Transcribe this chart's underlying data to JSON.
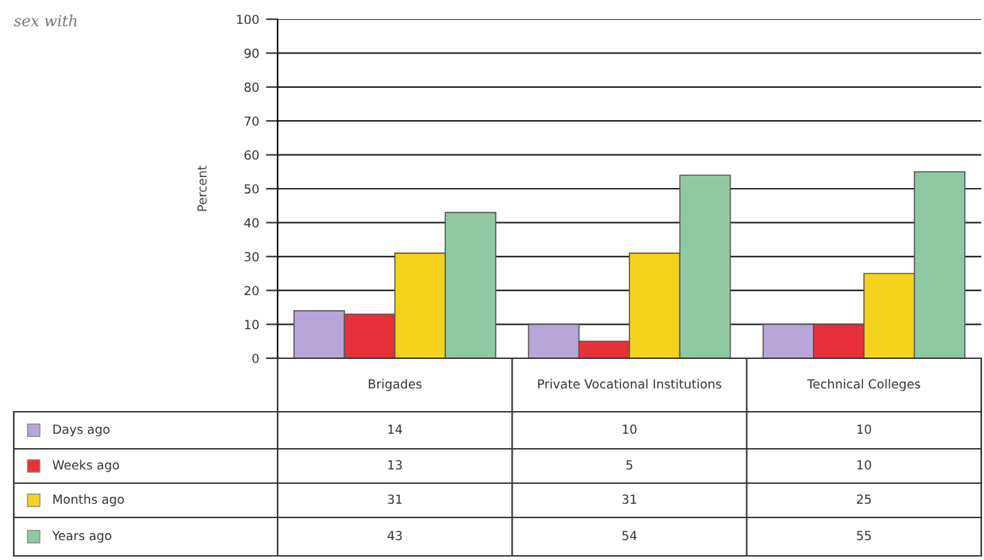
{
  "chart_data": {
    "type": "bar",
    "ylabel": "Percent",
    "annotations": [
      "sex with"
    ],
    "categories": [
      "Brigades",
      "Private Vocational Institutions",
      "Technical Colleges"
    ],
    "series": [
      {
        "name": "Days ago",
        "color": "#b9a6d8",
        "values": [
          14,
          10,
          10
        ]
      },
      {
        "name": "Weeks ago",
        "color": "#e8303a",
        "values": [
          13,
          5,
          10
        ]
      },
      {
        "name": "Months ago",
        "color": "#f5d21c",
        "values": [
          31,
          31,
          25
        ]
      },
      {
        "name": "Years ago",
        "color": "#8fc9a4",
        "values": [
          43,
          54,
          55
        ]
      }
    ],
    "ylim": [
      0,
      100
    ],
    "yticks": [
      0,
      10,
      20,
      30,
      40,
      50,
      60,
      70,
      80,
      90,
      100
    ],
    "grid": "y",
    "legend": "bottom",
    "data_labels": true
  }
}
